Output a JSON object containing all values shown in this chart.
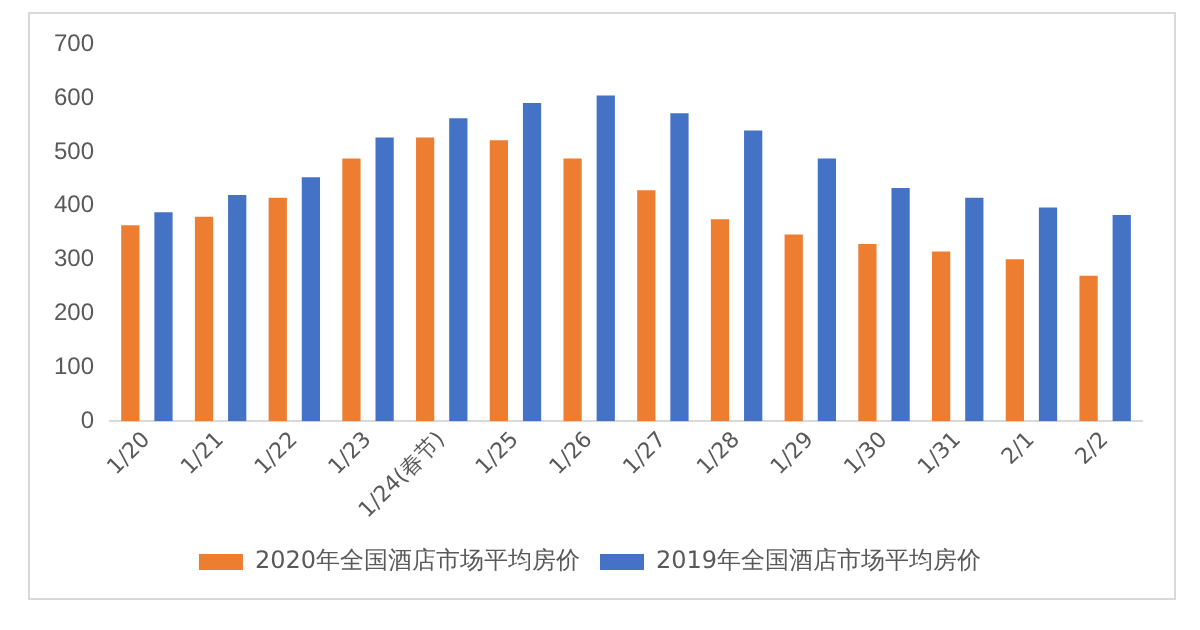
{
  "chart_data": {
    "type": "bar",
    "categories": [
      "1/20",
      "1/21",
      "1/22",
      "1/23",
      "1/24(春节)",
      "1/25",
      "1/26",
      "1/27",
      "1/28",
      "1/29",
      "1/30",
      "1/31",
      "2/1",
      "2/2"
    ],
    "series": [
      {
        "name": "2020年全国酒店市场平均房价",
        "color": "#ed7d31",
        "values": [
          364,
          380,
          415,
          488,
          527,
          522,
          488,
          429,
          375,
          347,
          329,
          315,
          301,
          270
        ]
      },
      {
        "name": "2019年全国酒店市场平均房价",
        "color": "#4472c4",
        "values": [
          388,
          420,
          453,
          527,
          563,
          591,
          605,
          572,
          540,
          488,
          433,
          415,
          397,
          383
        ]
      }
    ],
    "ylim": [
      0,
      700
    ],
    "yticks": [
      0,
      100,
      200,
      300,
      400,
      500,
      600,
      700
    ],
    "grid": false,
    "legend": "bottom"
  }
}
